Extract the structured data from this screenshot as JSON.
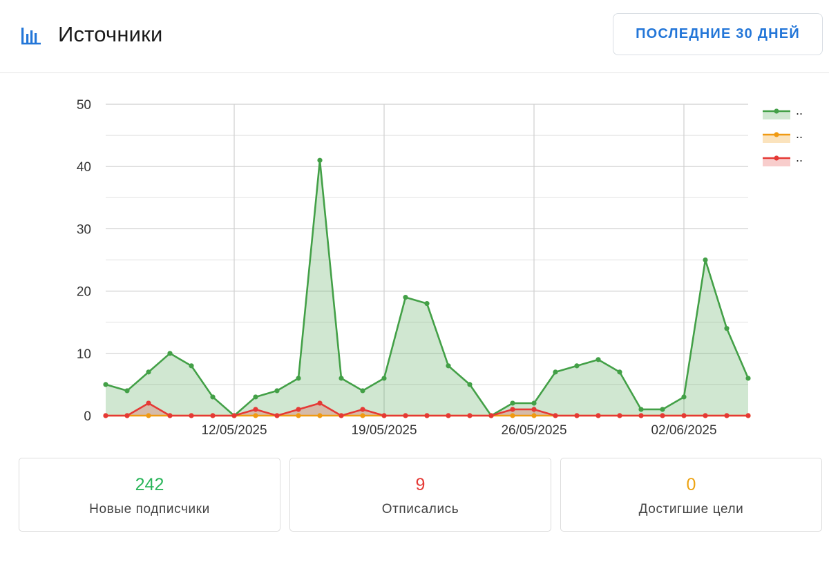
{
  "header": {
    "title": "Источники",
    "icon": "bar-chart-icon",
    "period_button_label": "Последние 30 дней"
  },
  "colors": {
    "accent": "#2376d8",
    "green": "#43a047",
    "orange": "#f09a12",
    "red": "#e53935"
  },
  "chart_data": {
    "type": "area",
    "x_ticks": [
      "12/05/2025",
      "19/05/2025",
      "26/05/2025",
      "02/06/2025"
    ],
    "ylim": [
      0,
      50
    ],
    "y_ticks": [
      0,
      10,
      20,
      30,
      40,
      50
    ],
    "grid": true,
    "legend_position": "top-right",
    "x": [
      "06/05/2025",
      "07/05/2025",
      "08/05/2025",
      "09/05/2025",
      "10/05/2025",
      "11/05/2025",
      "12/05/2025",
      "13/05/2025",
      "14/05/2025",
      "15/05/2025",
      "16/05/2025",
      "17/05/2025",
      "18/05/2025",
      "19/05/2025",
      "20/05/2025",
      "21/05/2025",
      "22/05/2025",
      "23/05/2025",
      "24/05/2025",
      "25/05/2025",
      "26/05/2025",
      "27/05/2025",
      "28/05/2025",
      "29/05/2025",
      "30/05/2025",
      "31/05/2025",
      "01/06/2025",
      "02/06/2025",
      "03/06/2025",
      "04/06/2025",
      "05/06/2025"
    ],
    "series": [
      {
        "name": "..",
        "color": "#43a047",
        "values": [
          5,
          4,
          7,
          10,
          8,
          3,
          0,
          3,
          4,
          6,
          41,
          6,
          4,
          6,
          19,
          18,
          8,
          5,
          0,
          2,
          2,
          7,
          8,
          9,
          7,
          1,
          1,
          3,
          25,
          14,
          6
        ]
      },
      {
        "name": "..",
        "color": "#f09a12",
        "values": [
          0,
          0,
          0,
          0,
          0,
          0,
          0,
          0,
          0,
          0,
          0,
          0,
          0,
          0,
          0,
          0,
          0,
          0,
          0,
          0,
          0,
          0,
          0,
          0,
          0,
          0,
          0,
          0,
          0,
          0,
          0
        ]
      },
      {
        "name": "..",
        "color": "#e53935",
        "values": [
          0,
          0,
          2,
          0,
          0,
          0,
          0,
          1,
          0,
          1,
          2,
          0,
          1,
          0,
          0,
          0,
          0,
          0,
          0,
          1,
          1,
          0,
          0,
          0,
          0,
          0,
          0,
          0,
          0,
          0,
          0
        ]
      }
    ]
  },
  "stats": [
    {
      "value": "242",
      "label": "Новые подписчики",
      "color": "#2ab55a"
    },
    {
      "value": "9",
      "label": "Отписались",
      "color": "#e53935"
    },
    {
      "value": "0",
      "label": "Достигшие цели",
      "color": "#eda312"
    }
  ]
}
